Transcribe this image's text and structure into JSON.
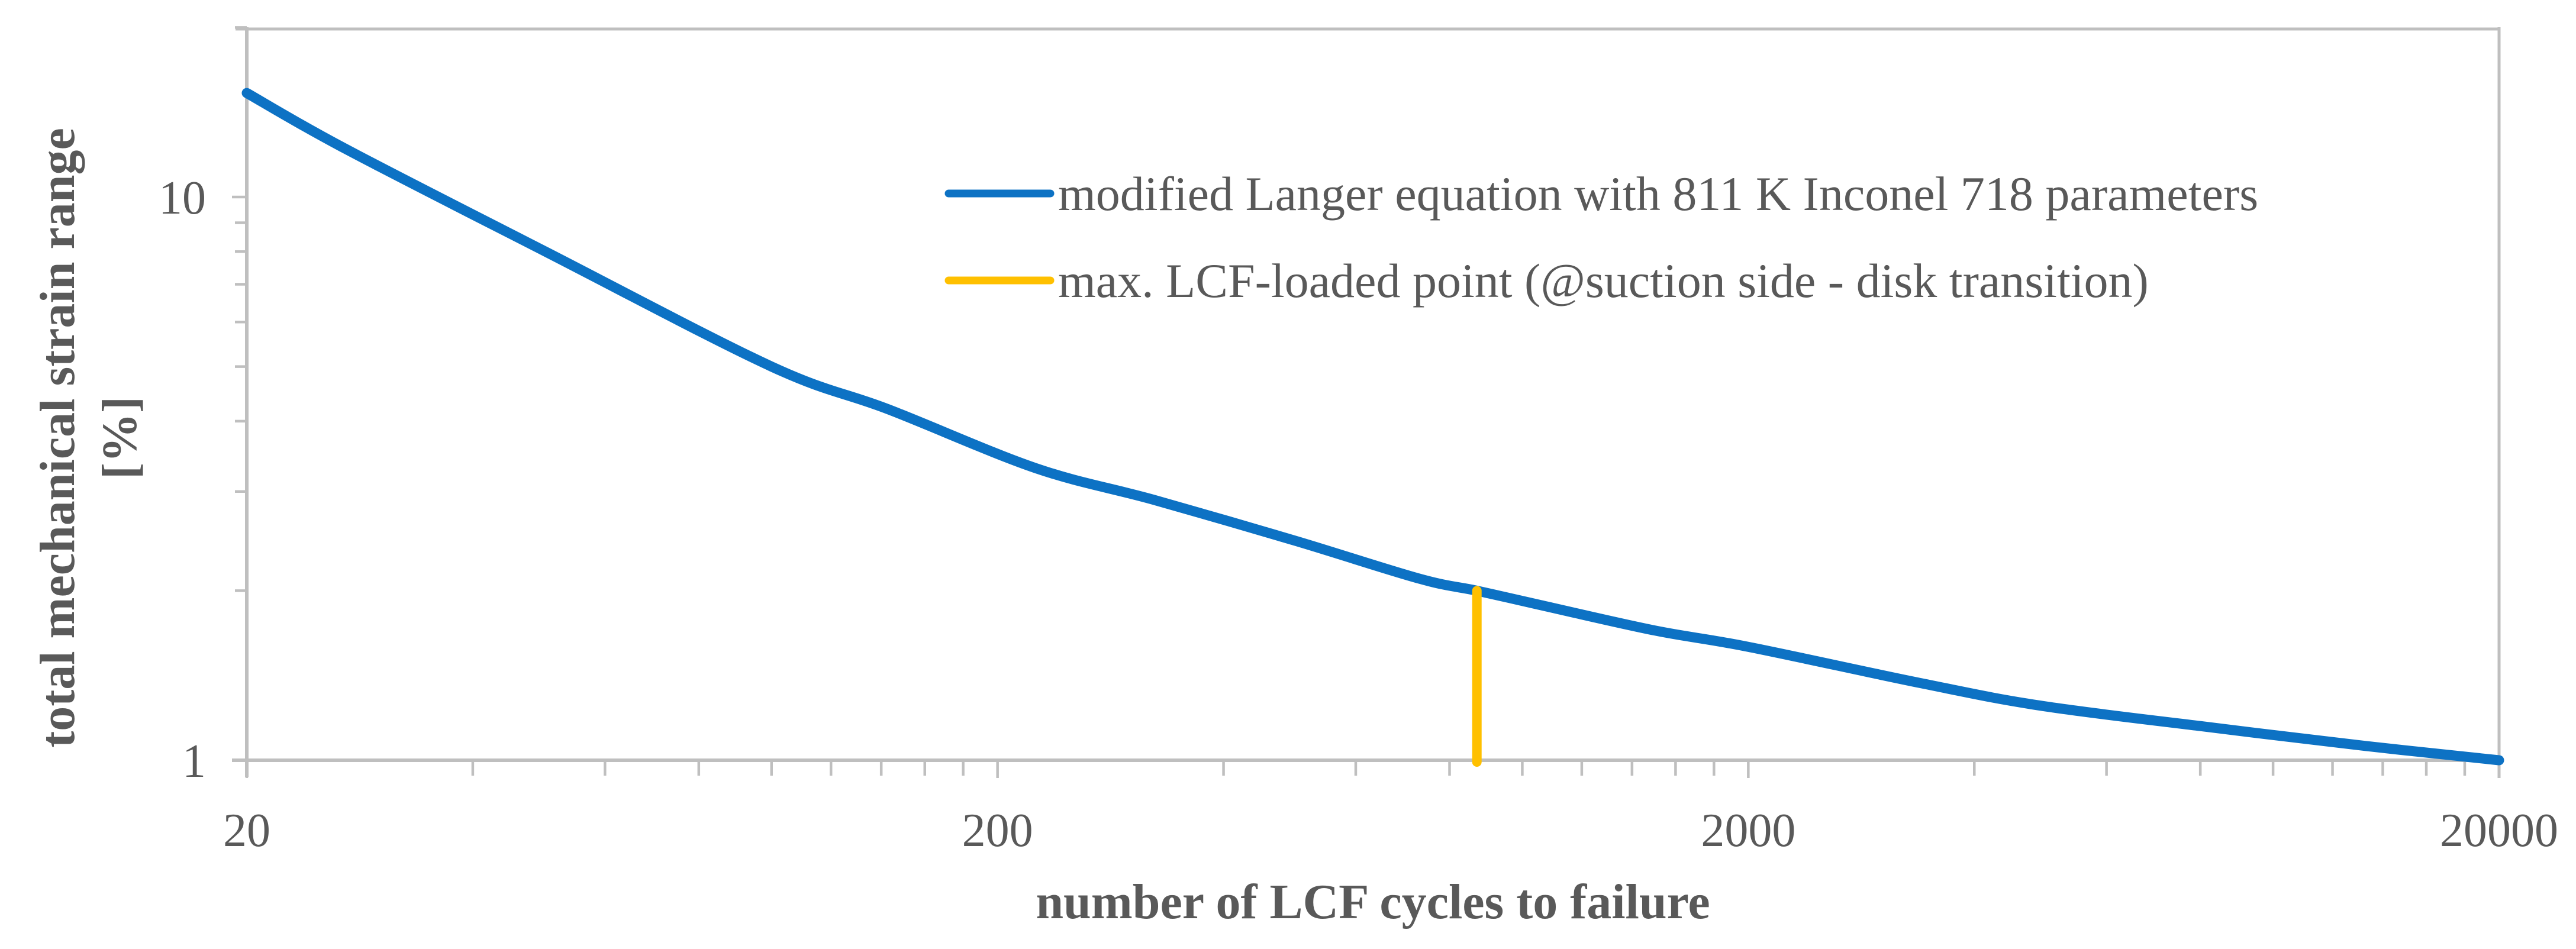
{
  "figure": {
    "type": "strain-life-curve",
    "background": "#ffffff"
  },
  "axes": {
    "x_title": "number of LCF cycles to failure",
    "y_title_line1": "total mechanical strain range",
    "y_title_line2": "[%]"
  },
  "legend": {
    "items": [
      {
        "label": "modified Langer equation with 811 K Inconel 718 parameters",
        "color": "#0d72c4"
      },
      {
        "label": "max. LCF-loaded point (@suction side - disk transition)",
        "color": "#ffc000"
      }
    ]
  },
  "colors": {
    "series_blue": "#0d72c4",
    "marker_yellow": "#ffc000",
    "axis_gray": "#bfbfbf",
    "text_gray": "#595959"
  },
  "chart_data": {
    "type": "line",
    "title": "",
    "xlabel": "number of LCF cycles to failure",
    "ylabel": "total mechanical strain range [%]",
    "x_scale": "log",
    "y_scale": "log",
    "xlim": [
      20,
      20000
    ],
    "ylim": [
      1,
      20
    ],
    "grid": false,
    "legend_position": "inside-top-center",
    "x_major_ticks": [
      {
        "value": 20,
        "label": "20"
      },
      {
        "value": 200,
        "label": "200"
      },
      {
        "value": 2000,
        "label": "2000"
      },
      {
        "value": 20000,
        "label": "20000"
      }
    ],
    "y_major_ticks": [
      {
        "value": 1,
        "label": "1"
      },
      {
        "value": 10,
        "label": "10"
      }
    ],
    "x_minor_ticks": [
      40,
      60,
      80,
      100,
      120,
      140,
      160,
      180,
      400,
      600,
      800,
      1000,
      1200,
      1400,
      1600,
      1800,
      4000,
      6000,
      8000,
      10000,
      12000,
      14000,
      16000,
      18000
    ],
    "y_minor_ticks": [
      2,
      3,
      4,
      5,
      6,
      7,
      8,
      9,
      20
    ],
    "series": [
      {
        "name": "modified Langer equation with 811 K Inconel 718 parameters",
        "type": "curve",
        "color": "#0d72c4",
        "points": [
          [
            20,
            15.3
          ],
          [
            27,
            12.2
          ],
          [
            50,
            8.0
          ],
          [
            100,
            5.0
          ],
          [
            143,
            4.2
          ],
          [
            225,
            3.3
          ],
          [
            323,
            2.9
          ],
          [
            500,
            2.45
          ],
          [
            730,
            2.1
          ],
          [
            870,
            2.0
          ],
          [
            1050,
            1.89
          ],
          [
            1500,
            1.7
          ],
          [
            2000,
            1.59
          ],
          [
            3400,
            1.37
          ],
          [
            4900,
            1.25
          ],
          [
            8000,
            1.15
          ],
          [
            13300,
            1.06
          ],
          [
            20000,
            1.0
          ]
        ]
      },
      {
        "name": "max. LCF-loaded point (@suction side - disk transition)",
        "type": "vertical-marker",
        "color": "#ffc000",
        "x": 870,
        "y_from": 1.0,
        "y_to": 2.0
      }
    ]
  }
}
